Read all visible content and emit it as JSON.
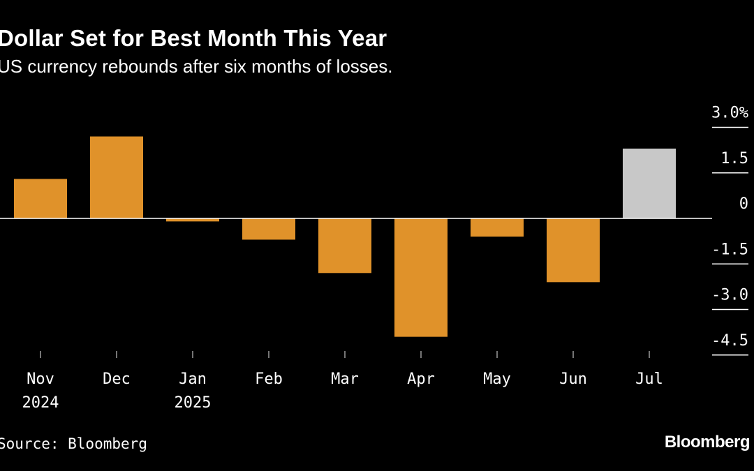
{
  "header": {
    "title": "Dollar Set for Best Month This Year",
    "subtitle": "US currency rebounds after six months of losses."
  },
  "footer": {
    "source": "Source: Bloomberg",
    "brand": "Bloomberg"
  },
  "colors": {
    "background": "#000000",
    "bar_negative_history": "#e0922a",
    "bar_current": "#c8c8c8",
    "axis": "#ffffff"
  },
  "chart_data": {
    "type": "bar",
    "categories": [
      "Nov\n2024",
      "Dec",
      "Jan\n2025",
      "Feb",
      "Mar",
      "Apr",
      "May",
      "Jun",
      "Jul"
    ],
    "values": [
      1.3,
      2.7,
      -0.1,
      -0.7,
      -1.8,
      -3.9,
      -0.6,
      -2.1,
      2.3
    ],
    "highlight_last": true,
    "ylim": [
      -4.5,
      3.0
    ],
    "yticks": [
      3.0,
      1.5,
      0,
      -1.5,
      -3.0,
      -4.5
    ],
    "ytick_labels": [
      "3.0%",
      "1.5",
      "0",
      "-1.5",
      "-3.0",
      "-4.5"
    ],
    "y_axis_position": "right",
    "grid": false,
    "title": "Dollar Set for Best Month This Year",
    "subtitle": "US currency rebounds after six months of losses.",
    "xlabel": "",
    "ylabel": ""
  }
}
